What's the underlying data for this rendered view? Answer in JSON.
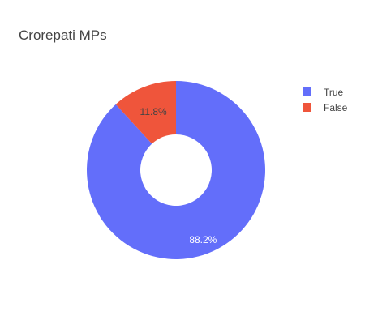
{
  "colors": {
    "true_slice": "#636efa",
    "false_slice": "#ef553b",
    "title_text": "#444444",
    "label_on_true": "#ffffff",
    "label_on_false": "#444444"
  },
  "chart_data": {
    "type": "pie",
    "title": "Crorepati MPs",
    "hole": 0.4,
    "legend_position": "top-right",
    "slices": [
      {
        "label": "True",
        "percent": 88.2,
        "percent_label": "88.2%",
        "color": "#636efa"
      },
      {
        "label": "False",
        "percent": 11.8,
        "percent_label": "11.8%",
        "color": "#ef553b"
      }
    ]
  }
}
